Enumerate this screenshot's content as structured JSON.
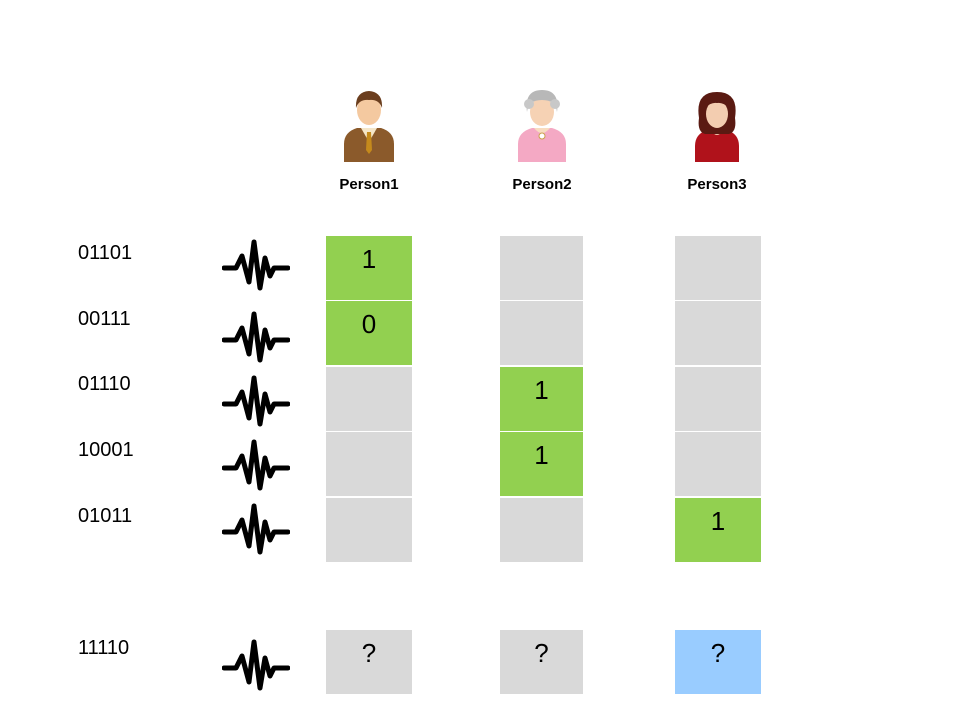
{
  "persons": [
    {
      "label": "Person1",
      "icon": "man-avatar-icon"
    },
    {
      "label": "Person2",
      "icon": "elderly-woman-avatar-icon"
    },
    {
      "label": "Person3",
      "icon": "woman-avatar-icon"
    }
  ],
  "rows": [
    {
      "code": "01101",
      "cells": [
        "1",
        "",
        ""
      ],
      "highlight": [
        "green",
        "",
        ""
      ]
    },
    {
      "code": "00111",
      "cells": [
        "0",
        "",
        ""
      ],
      "highlight": [
        "green",
        "",
        ""
      ]
    },
    {
      "code": "01110",
      "cells": [
        "",
        "1",
        ""
      ],
      "highlight": [
        "",
        "green",
        ""
      ]
    },
    {
      "code": "10001",
      "cells": [
        "",
        "1",
        ""
      ],
      "highlight": [
        "",
        "green",
        ""
      ]
    },
    {
      "code": "01011",
      "cells": [
        "",
        "",
        "1"
      ],
      "highlight": [
        "",
        "",
        "green"
      ]
    }
  ],
  "query": {
    "code": "11110",
    "cells": [
      "?",
      "?",
      "?"
    ],
    "highlight": [
      "",
      "",
      "blue"
    ]
  },
  "colors": {
    "match": "#92d050",
    "empty": "#d9d9d9",
    "query_highlight": "#99ccff"
  },
  "icons": {
    "row_signal": "signal-wave-icon"
  }
}
